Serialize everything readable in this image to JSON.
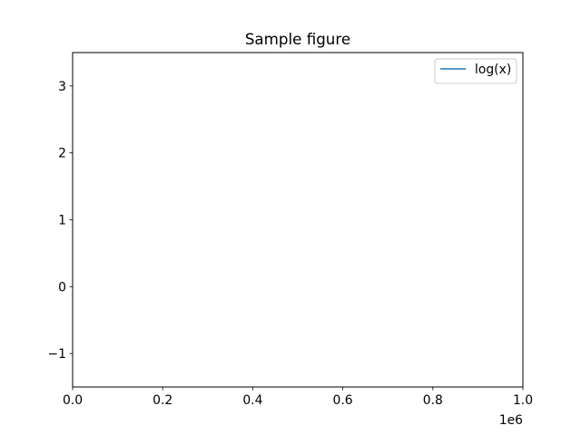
{
  "chart_data": {
    "type": "line",
    "title": "Sample figure",
    "xlabel": "",
    "ylabel": "",
    "xlim": [
      0,
      1000000
    ],
    "ylim": [
      -1.5,
      3.5
    ],
    "x_ticks": [
      0,
      200000,
      400000,
      600000,
      800000,
      1000000
    ],
    "x_tick_labels": [
      "0.0",
      "0.2",
      "0.4",
      "0.6",
      "0.8",
      "1.0"
    ],
    "x_offset_label": "1e6",
    "y_ticks": [
      -1,
      0,
      1,
      2,
      3
    ],
    "y_tick_labels": [
      "−1",
      "0",
      "1",
      "2",
      "3"
    ],
    "grid": false,
    "legend_position": "upper right",
    "series": [
      {
        "name": "log(x)",
        "color": "#1f77b4",
        "x": [],
        "y": []
      }
    ]
  }
}
